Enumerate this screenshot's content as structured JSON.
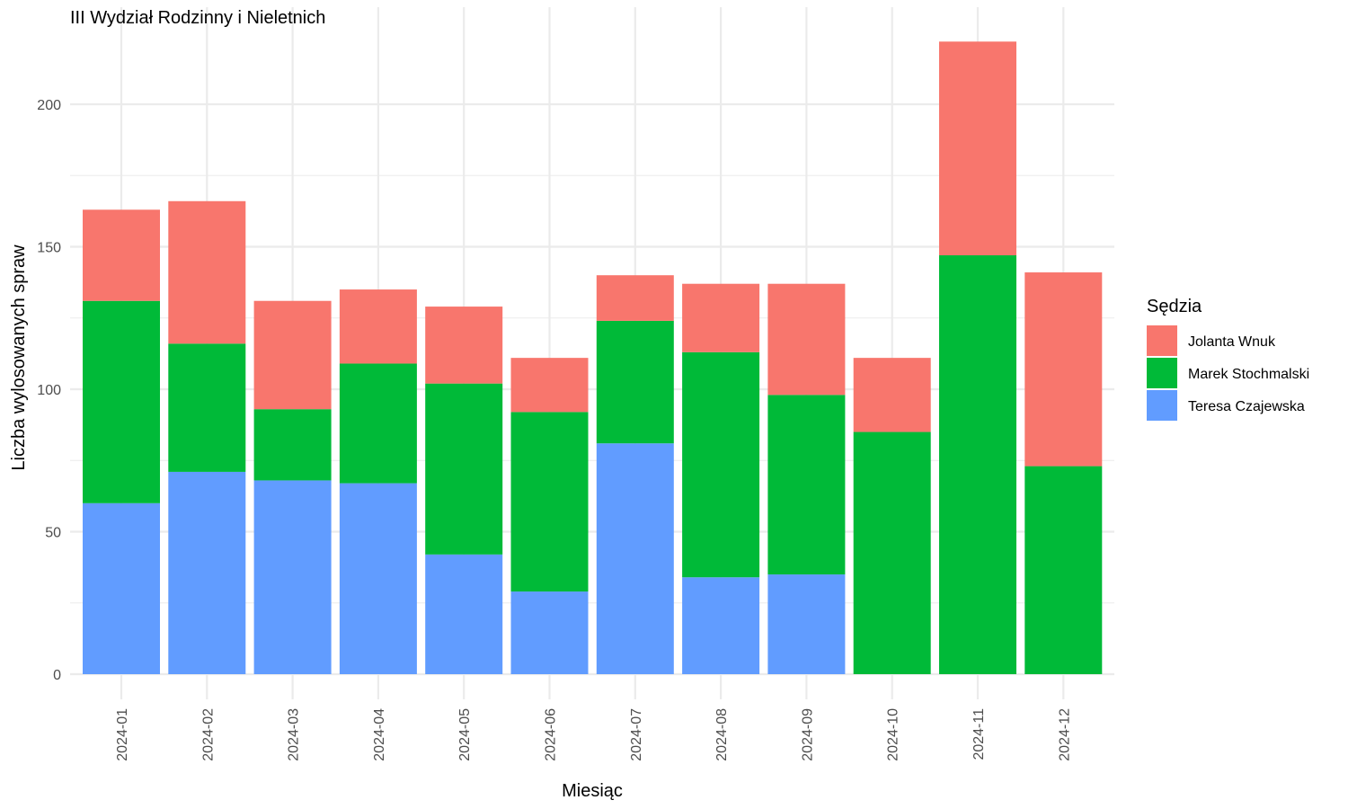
{
  "chart_data": {
    "type": "bar",
    "stacked": true,
    "title": "III Wydział Rodzinny i Nieletnich",
    "xlabel": "Miesiąc",
    "ylabel": "Liczba wylosowanych spraw",
    "ylim": [
      0,
      222
    ],
    "yticks": [
      0,
      50,
      100,
      150,
      200
    ],
    "grid": true,
    "legend": {
      "title": "Sędzia",
      "position": "right"
    },
    "categories": [
      "2024-01",
      "2024-02",
      "2024-03",
      "2024-04",
      "2024-05",
      "2024-06",
      "2024-07",
      "2024-08",
      "2024-09",
      "2024-10",
      "2024-11",
      "2024-12"
    ],
    "series": [
      {
        "name": "Teresa Czajewska",
        "color": "#619CFF",
        "values": [
          60,
          71,
          68,
          67,
          42,
          29,
          81,
          34,
          35,
          0,
          0,
          0
        ]
      },
      {
        "name": "Marek Stochmalski",
        "color": "#00BA38",
        "values": [
          71,
          45,
          25,
          42,
          60,
          63,
          43,
          79,
          63,
          85,
          147,
          73
        ]
      },
      {
        "name": "Jolanta Wnuk",
        "color": "#F8766D",
        "values": [
          32,
          50,
          38,
          26,
          27,
          19,
          16,
          24,
          39,
          26,
          75,
          68
        ]
      }
    ],
    "legend_order": [
      "Jolanta Wnuk",
      "Marek Stochmalski",
      "Teresa Czajewska"
    ]
  }
}
